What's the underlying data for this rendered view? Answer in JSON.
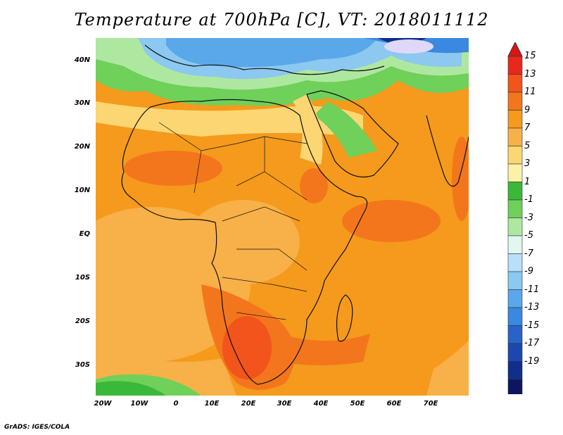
{
  "title": "Temperature at 700hPa [C], VT: 2018011112",
  "credit": "GrADS: IGES/COLA",
  "map": {
    "lat_labels": [
      "40N",
      "30N",
      "20N",
      "10N",
      "EQ",
      "10S",
      "20S",
      "30S"
    ],
    "lon_labels": [
      "20W",
      "10W",
      "0",
      "10E",
      "20E",
      "30E",
      "40E",
      "50E",
      "60E",
      "70E"
    ],
    "lat_range": [
      -36,
      45
    ],
    "lon_range": [
      -23,
      80
    ]
  },
  "colorbar": {
    "labels": [
      "15",
      "13",
      "11",
      "9",
      "7",
      "5",
      "3",
      "1",
      "-1",
      "-3",
      "-5",
      "-7",
      "-9",
      "-11",
      "-13",
      "-15",
      "-17",
      "-19"
    ],
    "colors": [
      "#e8281e",
      "#f2541c",
      "#f4761c",
      "#f59a1c",
      "#f8b048",
      "#fcd672",
      "#fbf2a8",
      "#3ab83a",
      "#6fd05a",
      "#aee8a0",
      "#e0f8f0",
      "#b8e0f8",
      "#8cc8f0",
      "#5aa8ea",
      "#3a88e0",
      "#2864c8",
      "#1a48b0",
      "#102e8c",
      "#0c1660"
    ],
    "top_arrow_color": "#dc1414",
    "bottom_arrow_color": "#e0d8f8"
  }
}
